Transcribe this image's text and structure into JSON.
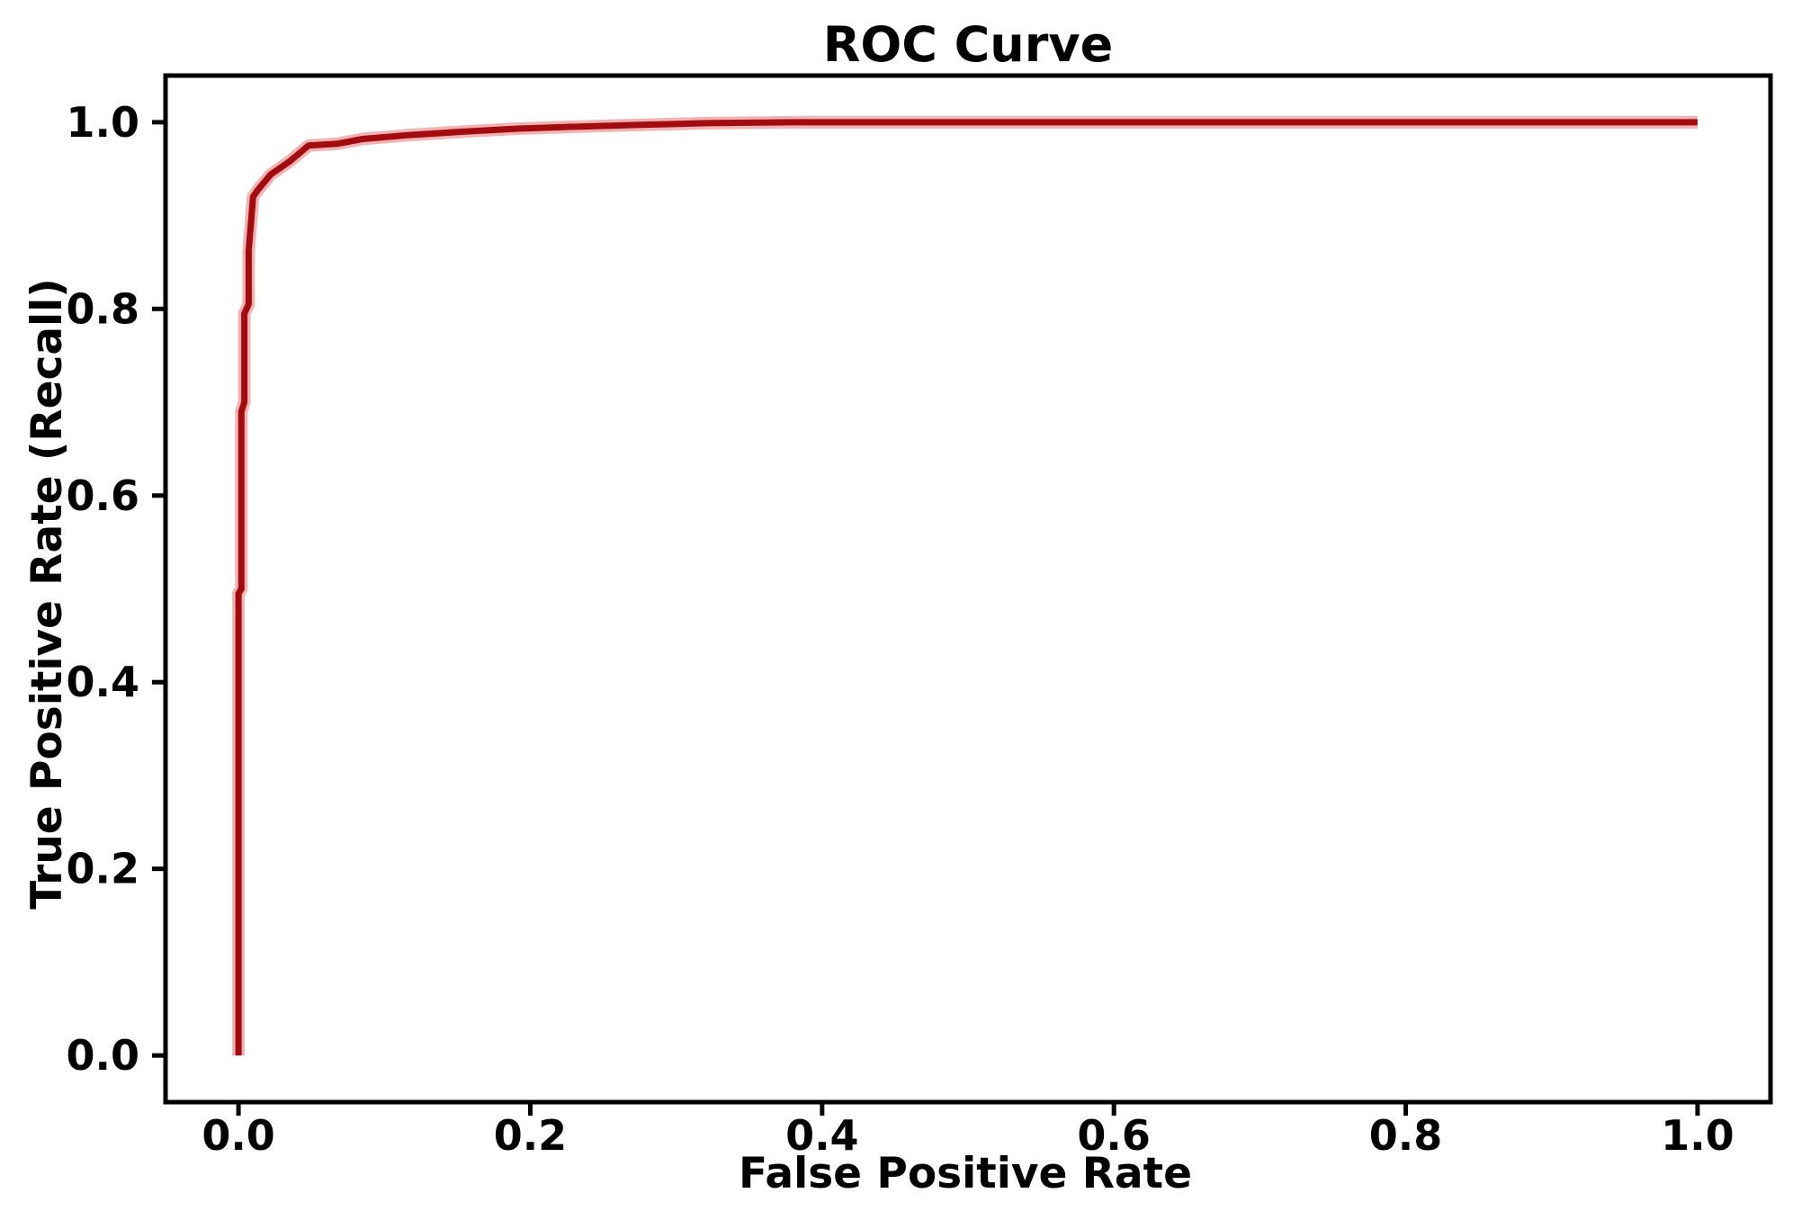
{
  "chart_data": {
    "type": "line",
    "title": "ROC Curve",
    "xlabel": "False Positive Rate",
    "ylabel": "True Positive Rate (Recall)",
    "xlim": [
      -0.05,
      1.05
    ],
    "ylim": [
      -0.05,
      1.05
    ],
    "grid": false,
    "legend": "none",
    "x_tick_values": [
      0.0,
      0.2,
      0.4,
      0.6,
      0.8,
      1.0
    ],
    "x_tick_labels": [
      "0.0",
      "0.2",
      "0.4",
      "0.6",
      "0.8",
      "1.0"
    ],
    "y_tick_values": [
      0.0,
      0.2,
      0.4,
      0.6,
      0.8,
      1.0
    ],
    "y_tick_labels": [
      "0.0",
      "0.2",
      "0.4",
      "0.6",
      "0.8",
      "1.0"
    ],
    "colors": {
      "line": "#a00c0f",
      "line_halo": "#f3a5a5",
      "axis": "#000000",
      "text": "#000000",
      "background": "#ffffff"
    },
    "series": [
      {
        "name": "ROC",
        "color": "#a00c0f",
        "points": [
          [
            0.0,
            0.0
          ],
          [
            0.0,
            0.495
          ],
          [
            0.002,
            0.5
          ],
          [
            0.002,
            0.69
          ],
          [
            0.004,
            0.7
          ],
          [
            0.004,
            0.795
          ],
          [
            0.007,
            0.805
          ],
          [
            0.007,
            0.862
          ],
          [
            0.01,
            0.92
          ],
          [
            0.013,
            0.927
          ],
          [
            0.022,
            0.944
          ],
          [
            0.035,
            0.958
          ],
          [
            0.048,
            0.975
          ],
          [
            0.068,
            0.977
          ],
          [
            0.085,
            0.982
          ],
          [
            0.115,
            0.986
          ],
          [
            0.155,
            0.99
          ],
          [
            0.19,
            0.993
          ],
          [
            0.225,
            0.995
          ],
          [
            0.27,
            0.997
          ],
          [
            0.32,
            0.999
          ],
          [
            0.38,
            1.0
          ],
          [
            0.5,
            1.0
          ],
          [
            1.0,
            1.0
          ]
        ]
      }
    ]
  }
}
